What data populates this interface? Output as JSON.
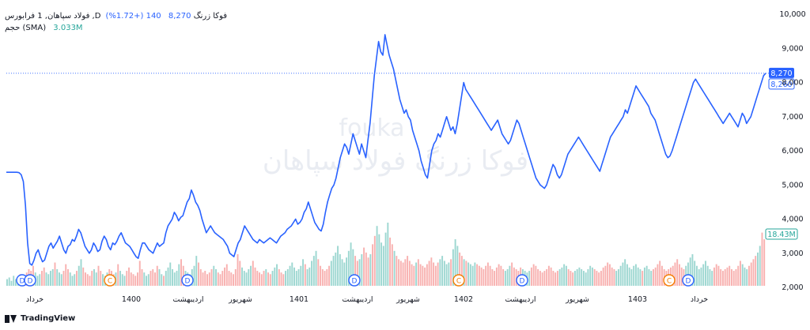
{
  "legend": {
    "symbol": "فولاد سپاهان, 1",
    "exchange_prefix": "فرابورس ,Dفوکا زرنگ",
    "last": "8,270",
    "change": "140 (+1.72%)",
    "volume_label": "حجم (SMA)",
    "volume_value": "3.033M"
  },
  "footer": {
    "brand": "TradingView"
  },
  "watermark": {
    "line1": "fouka",
    "line2": "فوکا زرنگ فولاد سپاهان"
  },
  "colors": {
    "line": "#2962ff",
    "up_volume": "#26a69a",
    "down_volume": "#ef5350",
    "badge_d": "#2962ff",
    "badge_c": "#f57c00",
    "volume_label": "#26a69a"
  },
  "chart_data": {
    "type": "line",
    "ylim": [
      2000,
      10000
    ],
    "y_ticks": [
      "10,000",
      "9,000",
      "8,000",
      "7,000",
      "6,000",
      "5,000",
      "4,000",
      "3,000",
      "2,000"
    ],
    "x_tick_labels": [
      "خرداد",
      "1400",
      "اردیبهشت",
      "شهریور",
      "1401",
      "اردیبهشت",
      "شهریور",
      "1402",
      "اردیبهشت",
      "شهریور",
      "1403",
      "خرداد"
    ],
    "last_price_label": "8,270",
    "prev_price_label": "8,260",
    "last_price": 8270,
    "prev_price": 8260,
    "volume_sma_label": "18.43M",
    "volume_sma": 18.43,
    "events": [
      "D",
      "D",
      "C",
      "D",
      "D",
      "C",
      "D",
      "C",
      "D"
    ],
    "series": [
      {
        "values": [
          5370,
          5370,
          5370,
          5370,
          5370,
          5370,
          5360,
          5300,
          5100,
          4400,
          3300,
          2700,
          2650,
          2800,
          3000,
          3100,
          2900,
          2750,
          2800,
          3000,
          3200,
          3300,
          3150,
          3250,
          3350,
          3500,
          3300,
          3100,
          3000,
          3200,
          3250,
          3400,
          3350,
          3500,
          3700,
          3600,
          3400,
          3200,
          3100,
          3000,
          3100,
          3300,
          3200,
          3050,
          3100,
          3350,
          3500,
          3400,
          3200,
          3100,
          3300,
          3250,
          3350,
          3500,
          3600,
          3450,
          3300,
          3250,
          3200,
          3100,
          3000,
          2900,
          2850,
          3100,
          3300,
          3300,
          3200,
          3100,
          3050,
          3000,
          3150,
          3300,
          3200,
          3250,
          3300,
          3600,
          3800,
          3900,
          4000,
          4200,
          4100,
          3950,
          4050,
          4100,
          4300,
          4500,
          4600,
          4850,
          4700,
          4500,
          4400,
          4250,
          4000,
          3800,
          3600,
          3700,
          3800,
          3700,
          3600,
          3550,
          3500,
          3450,
          3400,
          3300,
          3200,
          3000,
          2950,
          2900,
          3100,
          3300,
          3400,
          3600,
          3800,
          3700,
          3600,
          3500,
          3400,
          3350,
          3300,
          3400,
          3350,
          3300,
          3350,
          3400,
          3450,
          3400,
          3350,
          3300,
          3400,
          3500,
          3550,
          3600,
          3700,
          3750,
          3800,
          3900,
          4000,
          3850,
          3900,
          4000,
          4200,
          4300,
          4500,
          4300,
          4100,
          3900,
          3800,
          3700,
          3650,
          3850,
          4200,
          4500,
          4700,
          4900,
          5000,
          5200,
          5500,
          5800,
          6000,
          6200,
          6100,
          5900,
          6200,
          6500,
          6300,
          6100,
          5900,
          6200,
          6000,
          5800,
          6300,
          6800,
          7500,
          8200,
          8700,
          9200,
          8900,
          8800,
          9400,
          9100,
          8800,
          8600,
          8400,
          8100,
          7800,
          7500,
          7300,
          7100,
          7200,
          7000,
          6900,
          6600,
          6400,
          6200,
          6000,
          5700,
          5500,
          5300,
          5200,
          5600,
          6000,
          6200,
          6300,
          6500,
          6400,
          6600,
          6800,
          7000,
          6800,
          6600,
          6700,
          6500,
          6800,
          7200,
          7600,
          8000,
          7800,
          7700,
          7600,
          7500,
          7400,
          7300,
          7200,
          7100,
          7000,
          6900,
          6800,
          6700,
          6600,
          6700,
          6800,
          6900,
          6700,
          6500,
          6400,
          6300,
          6200,
          6300,
          6500,
          6700,
          6900,
          6800,
          6600,
          6400,
          6200,
          6000,
          5800,
          5600,
          5400,
          5200,
          5100,
          5000,
          4950,
          4900,
          5000,
          5200,
          5400,
          5600,
          5500,
          5300,
          5200,
          5300,
          5500,
          5700,
          5900,
          6000,
          6100,
          6200,
          6300,
          6400,
          6300,
          6200,
          6100,
          6000,
          5900,
          5800,
          5700,
          5600,
          5500,
          5400,
          5600,
          5800,
          6000,
          6200,
          6400,
          6500,
          6600,
          6700,
          6800,
          6900,
          7000,
          7200,
          7100,
          7300,
          7500,
          7700,
          7900,
          7800,
          7700,
          7600,
          7500,
          7400,
          7300,
          7100,
          7000,
          6900,
          6700,
          6500,
          6300,
          6100,
          5900,
          5800,
          5850,
          6000,
          6200,
          6400,
          6600,
          6800,
          7000,
          7200,
          7400,
          7600,
          7800,
          8000,
          8100,
          8000,
          7900,
          7800,
          7700,
          7600,
          7500,
          7400,
          7300,
          7200,
          7100,
          7000,
          6900,
          6800,
          6900,
          7000,
          7100,
          7000,
          6900,
          6800,
          6700,
          6900,
          7100,
          7000,
          6800,
          6900,
          7000,
          7200,
          7400,
          7600,
          7800,
          8000,
          8200,
          8270
        ]
      }
    ],
    "volumes": [
      0.4,
      0.5,
      0.3,
      0.6,
      0.4,
      0.5,
      0.7,
      0.5,
      0.6,
      0.8,
      1.0,
      0.9,
      1.2,
      0.8,
      0.6,
      0.7,
      0.9,
      1.1,
      0.8,
      0.7,
      0.9,
      1.0,
      1.4,
      1.0,
      0.8,
      0.7,
      0.9,
      1.3,
      1.0,
      0.8,
      0.6,
      0.7,
      0.9,
      1.2,
      1.6,
      1.1,
      0.8,
      0.7,
      0.6,
      0.9,
      1.0,
      0.8,
      1.2,
      0.9,
      0.7,
      0.6,
      0.8,
      1.0,
      0.9,
      0.7,
      0.8,
      1.3,
      0.9,
      0.7,
      0.6,
      0.9,
      1.1,
      0.8,
      0.7,
      0.6,
      0.8,
      1.5,
      1.0,
      0.8,
      0.6,
      0.7,
      0.9,
      1.0,
      0.8,
      1.2,
      1.0,
      0.7,
      0.6,
      0.9,
      1.1,
      1.4,
      1.0,
      0.8,
      0.9,
      1.3,
      1.6,
      1.2,
      0.9,
      0.8,
      0.7,
      1.0,
      1.2,
      1.8,
      1.4,
      1.0,
      0.8,
      0.9,
      0.7,
      0.8,
      1.0,
      1.2,
      1.0,
      0.8,
      0.7,
      0.9,
      1.1,
      1.3,
      0.9,
      0.8,
      0.7,
      1.0,
      1.9,
      1.5,
      1.1,
      0.9,
      0.8,
      1.0,
      1.2,
      1.5,
      1.1,
      0.9,
      0.8,
      0.7,
      0.9,
      1.0,
      0.8,
      0.7,
      0.9,
      1.1,
      1.3,
      1.0,
      0.8,
      0.7,
      0.9,
      1.0,
      1.2,
      1.4,
      1.1,
      0.9,
      1.0,
      1.2,
      1.6,
      1.3,
      1.0,
      1.1,
      1.5,
      1.8,
      2.1,
      1.6,
      1.2,
      1.0,
      0.9,
      1.0,
      1.2,
      1.5,
      1.8,
      2.0,
      2.4,
      1.9,
      1.6,
      1.4,
      1.7,
      2.1,
      2.6,
      2.2,
      1.8,
      1.5,
      1.6,
      1.9,
      2.3,
      2.0,
      1.7,
      1.9,
      2.5,
      3.0,
      3.6,
      3.1,
      2.6,
      2.4,
      3.2,
      3.8,
      2.9,
      2.5,
      2.1,
      1.8,
      1.6,
      1.5,
      1.4,
      1.6,
      1.8,
      1.5,
      1.3,
      1.2,
      1.4,
      1.6,
      1.3,
      1.2,
      1.1,
      1.3,
      1.5,
      1.7,
      1.4,
      1.2,
      1.4,
      1.6,
      1.8,
      1.5,
      1.3,
      1.4,
      1.6,
      2.2,
      2.8,
      2.4,
      2.0,
      1.8,
      1.6,
      1.5,
      1.4,
      1.3,
      1.2,
      1.4,
      1.3,
      1.2,
      1.1,
      1.0,
      1.2,
      1.4,
      1.2,
      1.0,
      0.9,
      1.1,
      1.3,
      1.2,
      1.0,
      0.9,
      1.0,
      1.2,
      1.4,
      1.1,
      1.0,
      0.9,
      1.1,
      1.0,
      0.9,
      0.8,
      0.9,
      1.1,
      1.3,
      1.2,
      1.0,
      0.9,
      0.8,
      0.9,
      1.0,
      1.2,
      1.1,
      0.9,
      0.8,
      0.9,
      1.0,
      1.1,
      1.3,
      1.2,
      1.0,
      0.9,
      0.8,
      0.9,
      1.0,
      1.1,
      1.0,
      0.9,
      0.8,
      1.0,
      1.2,
      1.1,
      1.0,
      0.9,
      0.8,
      0.9,
      1.1,
      1.2,
      1.4,
      1.3,
      1.1,
      1.0,
      0.9,
      1.0,
      1.2,
      1.4,
      1.6,
      1.3,
      1.1,
      1.0,
      1.2,
      1.3,
      1.1,
      1.0,
      0.9,
      1.1,
      1.2,
      1.0,
      0.9,
      1.0,
      1.1,
      1.3,
      1.5,
      1.2,
      1.0,
      0.9,
      1.0,
      1.1,
      1.2,
      1.4,
      1.6,
      1.3,
      1.1,
      1.0,
      1.2,
      1.4,
      1.7,
      1.9,
      1.5,
      1.2,
      1.0,
      1.1,
      1.3,
      1.5,
      1.2,
      1.0,
      0.9,
      1.1,
      1.3,
      1.2,
      1.0,
      0.9,
      1.0,
      1.1,
      1.2,
      1.0,
      0.9,
      1.0,
      1.2,
      1.5,
      1.3,
      1.1,
      1.0,
      1.2,
      1.4,
      1.6,
      1.8,
      2.0,
      2.4,
      3.2,
      2.8
    ]
  }
}
